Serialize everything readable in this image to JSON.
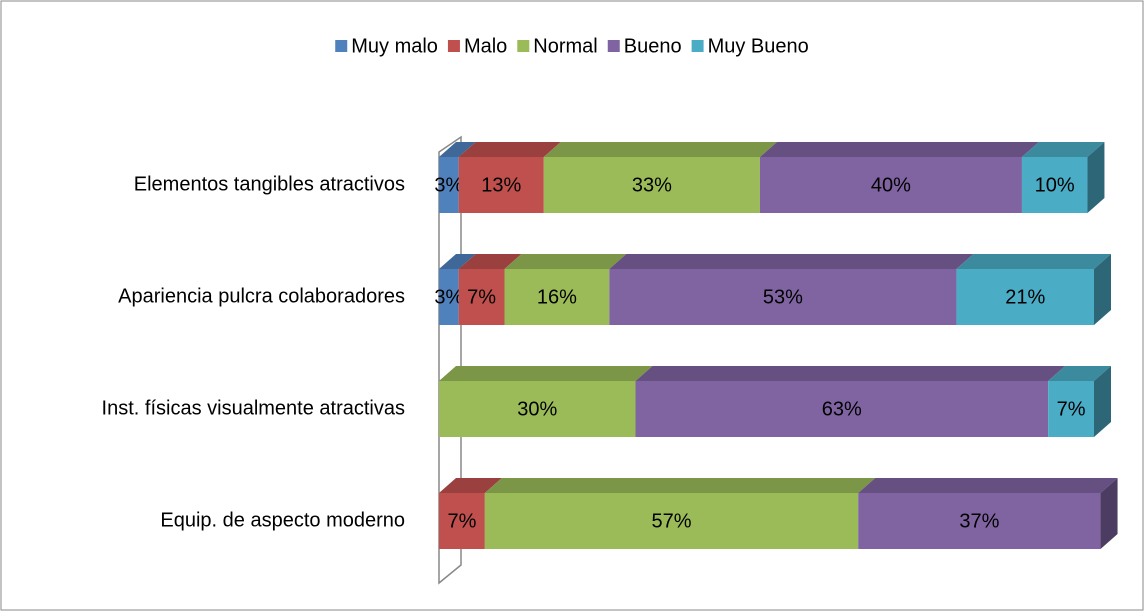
{
  "chart_data": {
    "type": "stacked_bar_horizontal",
    "categories": [
      "Elementos tangibles atractivos",
      "Apariencia pulcra colaboradores",
      "Inst. físicas visualmente atractivas",
      "Equip. de aspecto moderno"
    ],
    "series": [
      {
        "name": "Muy malo",
        "color": "#4f81bd",
        "values": [
          3,
          3,
          0,
          0
        ],
        "value_labels": [
          "3%",
          "3%",
          null,
          null
        ]
      },
      {
        "name": "Malo",
        "color": "#c0504d",
        "values": [
          13,
          7,
          0,
          7
        ],
        "value_labels": [
          "13%",
          "7%",
          null,
          "7%"
        ]
      },
      {
        "name": "Normal",
        "color": "#9bbb59",
        "values": [
          33,
          16,
          30,
          57
        ],
        "value_labels": [
          "33%",
          "16%",
          "30%",
          "57%"
        ]
      },
      {
        "name": "Bueno",
        "color": "#8064a2",
        "values": [
          40,
          53,
          63,
          37
        ],
        "value_labels": [
          "40%",
          "53%",
          "63%",
          "37%"
        ]
      },
      {
        "name": "Muy Bueno",
        "color": "#4bacc6",
        "values": [
          10,
          21,
          7,
          0
        ],
        "value_labels": [
          "10%",
          "21%",
          "7%",
          null
        ]
      }
    ],
    "xlim": [
      0,
      100
    ],
    "legend": "top"
  }
}
